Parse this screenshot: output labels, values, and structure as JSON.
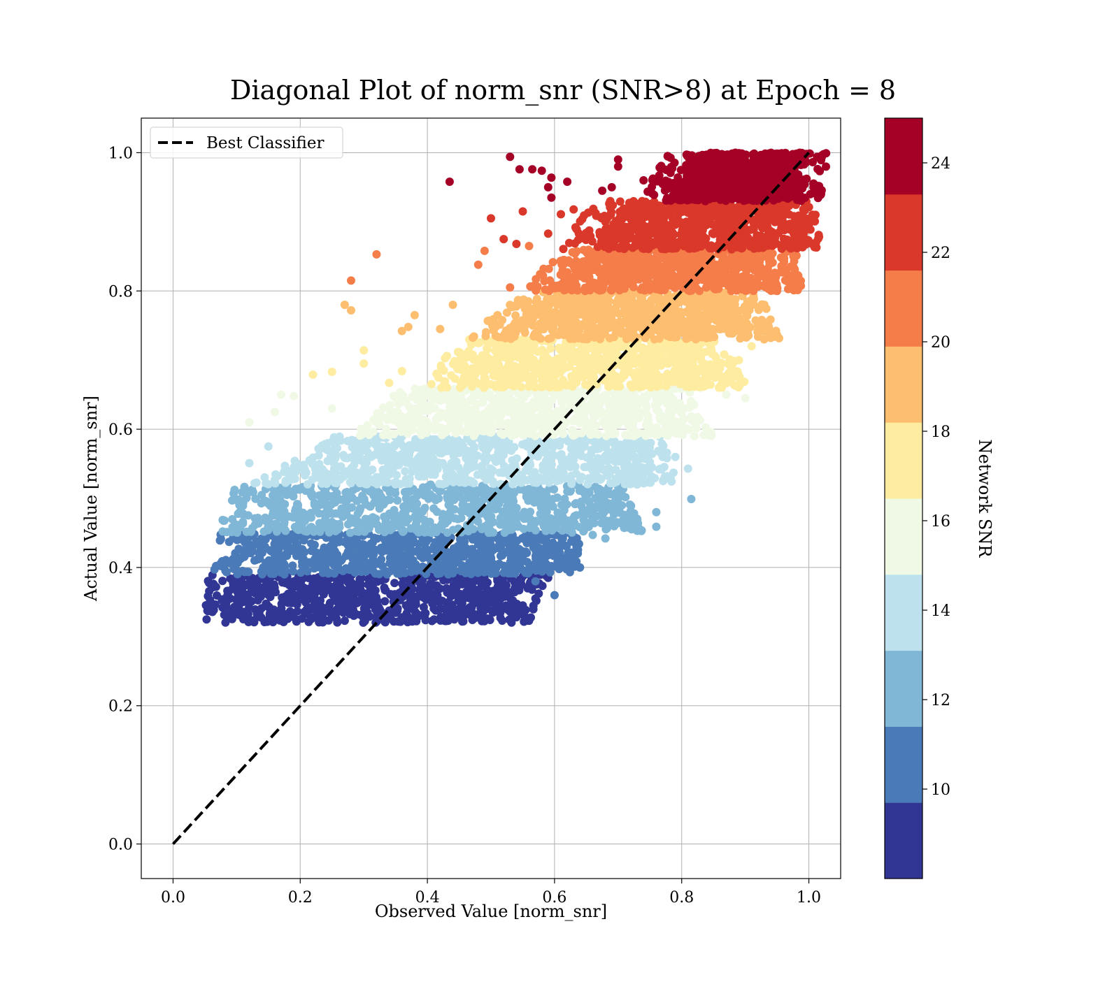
{
  "chart_data": {
    "type": "scatter",
    "title": "Diagonal Plot of norm_snr (SNR>8) at Epoch = 8",
    "xlabel": "Observed Value [norm_snr]",
    "ylabel": "Actual Value [norm_snr]",
    "xlim": [
      -0.05,
      1.05
    ],
    "ylim": [
      -0.05,
      1.05
    ],
    "grid": true,
    "x_ticks": [
      "0.0",
      "0.2",
      "0.4",
      "0.6",
      "0.8",
      "1.0"
    ],
    "y_ticks": [
      "0.0",
      "0.2",
      "0.4",
      "0.6",
      "0.8",
      "1.0"
    ],
    "legend": {
      "placement": "upper-left",
      "entries": [
        {
          "label": "Best Classifier",
          "style": "dashed",
          "color": "#000000"
        }
      ]
    },
    "reference_line": {
      "label": "Best Classifier",
      "x": [
        0,
        1
      ],
      "y": [
        0,
        1
      ],
      "style": "dashed",
      "color": "#000000"
    },
    "colorbar": {
      "label": "Network SNR",
      "range": [
        8,
        25
      ],
      "ticks": [
        "10",
        "12",
        "14",
        "16",
        "18",
        "20",
        "22",
        "24"
      ],
      "colormap": "RdYlBu_r",
      "levels": [
        {
          "snr_range": [
            8.0,
            9.7
          ],
          "color": "#313695"
        },
        {
          "snr_range": [
            9.7,
            11.4
          ],
          "color": "#4a7ab7"
        },
        {
          "snr_range": [
            11.4,
            13.1
          ],
          "color": "#80b6d6"
        },
        {
          "snr_range": [
            13.1,
            14.8
          ],
          "color": "#bde2ee"
        },
        {
          "snr_range": [
            14.8,
            16.5
          ],
          "color": "#eff9e5"
        },
        {
          "snr_range": [
            16.5,
            18.2
          ],
          "color": "#feeda1"
        },
        {
          "snr_range": [
            18.2,
            19.9
          ],
          "color": "#fdbe70"
        },
        {
          "snr_range": [
            19.9,
            21.6
          ],
          "color": "#f57d4a"
        },
        {
          "snr_range": [
            21.6,
            23.3
          ],
          "color": "#da382a"
        },
        {
          "snr_range": [
            23.3,
            25.0
          ],
          "color": "#a50026"
        }
      ]
    },
    "series": [
      {
        "level": 0,
        "band_y": [
          0.32,
          0.39
        ],
        "dense_x": [
          [
            0.1,
            0.55
          ],
          [
            0.1,
            0.52
          ]
        ],
        "outlier_points": [
          [
            0.09,
            0.384
          ],
          [
            0.09,
            0.355
          ],
          [
            0.1,
            0.372
          ],
          [
            0.53,
            0.336
          ],
          [
            0.55,
            0.345
          ],
          [
            0.57,
            0.355
          ],
          [
            0.59,
            0.385
          ],
          [
            0.56,
            0.323
          ],
          [
            0.54,
            0.328
          ]
        ]
      },
      {
        "level": 1,
        "band_y": [
          0.39,
          0.45
        ],
        "dense_x": [
          [
            0.12,
            0.6
          ],
          [
            0.11,
            0.6
          ]
        ],
        "outlier_points": [
          [
            0.11,
            0.425
          ],
          [
            0.11,
            0.447
          ],
          [
            0.62,
            0.41
          ],
          [
            0.64,
            0.4
          ],
          [
            0.6,
            0.36
          ],
          [
            0.57,
            0.38
          ]
        ]
      },
      {
        "level": 2,
        "band_y": [
          0.45,
          0.52
        ],
        "dense_x": [
          [
            0.15,
            0.67
          ],
          [
            0.12,
            0.7
          ]
        ],
        "outlier_points": [
          [
            0.11,
            0.478
          ],
          [
            0.12,
            0.51
          ],
          [
            0.7,
            0.49
          ],
          [
            0.73,
            0.47
          ],
          [
            0.66,
            0.447
          ],
          [
            0.68,
            0.442
          ],
          [
            0.76,
            0.48
          ],
          [
            0.76,
            0.459
          ],
          [
            0.73,
            0.453
          ],
          [
            0.815,
            0.499
          ]
        ]
      },
      {
        "level": 3,
        "band_y": [
          0.52,
          0.59
        ],
        "dense_x": [
          [
            0.3,
            0.74
          ],
          [
            0.17,
            0.75
          ]
        ],
        "outlier_points": [
          [
            0.12,
            0.551
          ],
          [
            0.15,
            0.575
          ],
          [
            0.77,
            0.56
          ],
          [
            0.79,
            0.56
          ],
          [
            0.81,
            0.543
          ],
          [
            0.73,
            0.52
          ],
          [
            0.75,
            0.527
          ]
        ]
      },
      {
        "level": 4,
        "band_y": [
          0.59,
          0.66
        ],
        "dense_x": [
          [
            0.41,
            0.77
          ],
          [
            0.33,
            0.81
          ]
        ],
        "outlier_points": [
          [
            0.12,
            0.61
          ],
          [
            0.17,
            0.65
          ],
          [
            0.19,
            0.648
          ],
          [
            0.25,
            0.63
          ],
          [
            0.83,
            0.66
          ],
          [
            0.87,
            0.65
          ],
          [
            0.9,
            0.645
          ],
          [
            0.82,
            0.59
          ],
          [
            0.16,
            0.625
          ]
        ]
      },
      {
        "level": 5,
        "band_y": [
          0.66,
          0.73
        ],
        "dense_x": [
          [
            0.5,
            0.82
          ],
          [
            0.44,
            0.87
          ]
        ],
        "outlier_points": [
          [
            0.22,
            0.679
          ],
          [
            0.25,
            0.683
          ],
          [
            0.3,
            0.695
          ],
          [
            0.3,
            0.714
          ],
          [
            0.34,
            0.667
          ],
          [
            0.36,
            0.684
          ],
          [
            0.89,
            0.7
          ],
          [
            0.91,
            0.72
          ]
        ]
      },
      {
        "level": 6,
        "band_y": [
          0.73,
          0.8
        ],
        "dense_x": [
          [
            0.61,
            0.88
          ],
          [
            0.5,
            0.92
          ]
        ],
        "outlier_points": [
          [
            0.27,
            0.78
          ],
          [
            0.28,
            0.772
          ],
          [
            0.38,
            0.765
          ],
          [
            0.36,
            0.742
          ],
          [
            0.37,
            0.748
          ],
          [
            0.42,
            0.745
          ],
          [
            0.44,
            0.78
          ],
          [
            0.93,
            0.78
          ],
          [
            0.92,
            0.75
          ]
        ]
      },
      {
        "level": 7,
        "band_y": [
          0.8,
          0.86
        ],
        "dense_x": [
          [
            0.66,
            0.94
          ],
          [
            0.6,
            0.95
          ]
        ],
        "outlier_points": [
          [
            0.28,
            0.815
          ],
          [
            0.32,
            0.853
          ],
          [
            0.48,
            0.838
          ],
          [
            0.49,
            0.858
          ],
          [
            0.53,
            0.805
          ],
          [
            0.56,
            0.865
          ],
          [
            0.62,
            0.827
          ],
          [
            0.95,
            0.8
          ]
        ]
      },
      {
        "level": 8,
        "band_y": [
          0.86,
          0.93
        ],
        "dense_x": [
          [
            0.71,
            0.97
          ],
          [
            0.66,
            0.98
          ]
        ],
        "outlier_points": [
          [
            0.5,
            0.905
          ],
          [
            0.55,
            0.915
          ],
          [
            0.52,
            0.875
          ],
          [
            0.54,
            0.868
          ],
          [
            0.59,
            0.883
          ],
          [
            0.61,
            0.911
          ],
          [
            0.63,
            0.918
          ],
          [
            0.68,
            0.9
          ]
        ]
      },
      {
        "level": 9,
        "band_y": [
          0.93,
          1.0
        ],
        "dense_x": [
          [
            0.83,
            0.99
          ],
          [
            0.78,
            0.98
          ]
        ],
        "outlier_points": [
          [
            0.435,
            0.958
          ],
          [
            0.53,
            0.994
          ],
          [
            0.545,
            0.976
          ],
          [
            0.565,
            0.976
          ],
          [
            0.58,
            0.974
          ],
          [
            0.595,
            0.964
          ],
          [
            0.595,
            0.935
          ],
          [
            0.62,
            0.958
          ],
          [
            0.59,
            0.95
          ],
          [
            0.675,
            0.945
          ],
          [
            0.69,
            0.95
          ],
          [
            0.7,
            0.98
          ],
          [
            0.7,
            0.99
          ],
          [
            0.74,
            0.96
          ]
        ]
      }
    ]
  }
}
